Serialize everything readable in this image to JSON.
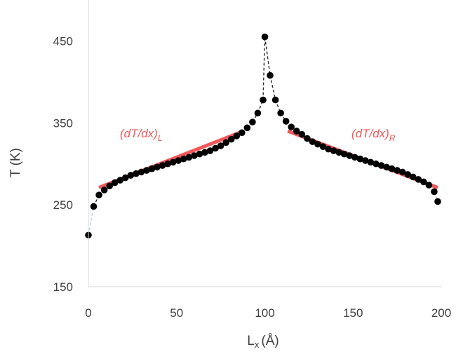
{
  "chart_data": {
    "type": "scatter",
    "xlabel": "L",
    "xlabel_sub": "x",
    "xlabel_unit": "(Å)",
    "ylabel": "T (K)",
    "xlim": [
      0,
      200
    ],
    "ylim": [
      150,
      500
    ],
    "xticks": [
      0,
      50,
      100,
      150,
      200
    ],
    "yticks": [
      150,
      250,
      350,
      450
    ],
    "grid": false,
    "colors": {
      "points": "#000000",
      "connector": "#2a2a2a",
      "fit": "#f0585a",
      "connector_edge": "#b8cfe0"
    },
    "points": {
      "x": [
        0,
        3,
        6,
        9,
        12,
        15,
        18,
        21,
        24,
        27,
        30,
        33,
        36,
        39,
        42,
        45,
        48,
        51,
        54,
        57,
        60,
        63,
        66,
        69,
        72,
        75,
        78,
        81,
        84,
        87,
        90,
        93,
        96,
        99,
        100,
        103,
        106,
        109,
        112,
        115,
        118,
        121,
        124,
        127,
        130,
        133,
        136,
        139,
        142,
        145,
        148,
        151,
        154,
        157,
        160,
        163,
        166,
        169,
        172,
        175,
        178,
        181,
        184,
        187,
        190,
        193,
        196,
        198
      ],
      "y": [
        213,
        248,
        262,
        268,
        273,
        277,
        280,
        283,
        286,
        288,
        290,
        292,
        294,
        296,
        298,
        300,
        302,
        304,
        306,
        308,
        310,
        312,
        314,
        316,
        319,
        322,
        326,
        330,
        334,
        338,
        344,
        351,
        362,
        378,
        455,
        408,
        378,
        362,
        352,
        345,
        340,
        336,
        331,
        327,
        324,
        321,
        318,
        316,
        314,
        312,
        310,
        308,
        306,
        304,
        302,
        300,
        298,
        296,
        294,
        292,
        290,
        287,
        284,
        281,
        278,
        274,
        266,
        254
      ]
    },
    "fits": [
      {
        "x": [
          6,
          88
        ],
        "y": [
          271,
          340
        ],
        "label_main": "(dT/dx)",
        "label_sub": "L"
      },
      {
        "x": [
          113,
          198
        ],
        "y": [
          340,
          271
        ],
        "label_main": "(dT/dx)",
        "label_sub": "R"
      }
    ]
  }
}
